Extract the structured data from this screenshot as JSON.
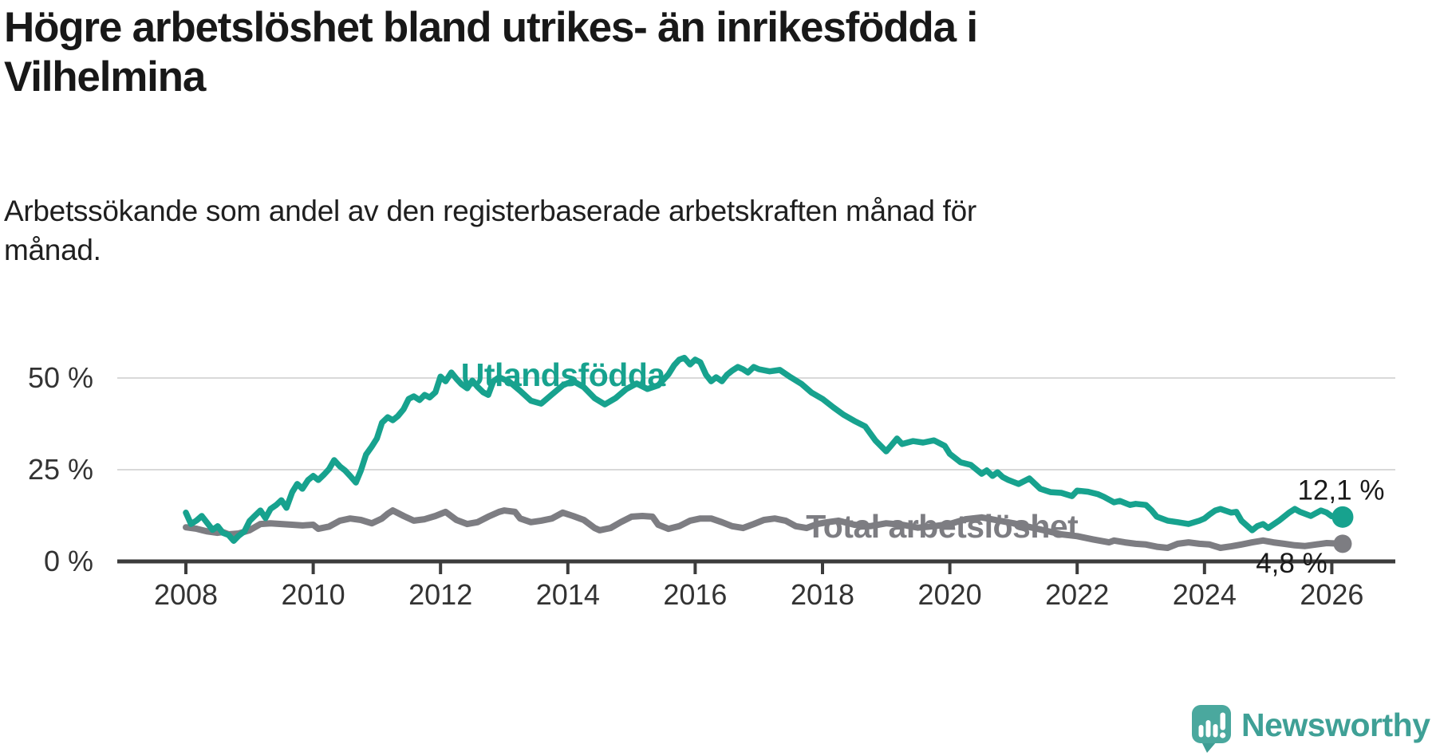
{
  "header": {
    "title": "Högre arbetslöshet bland utrikes- än inrikesfödda i\nVilhelmina",
    "subtitle": "Arbetssökande som andel av den registerbaserade arbetskraften månad för\nmånad."
  },
  "branding": {
    "logo_text": "Newsworthy",
    "logo_icon": "speech-bubble-bar-chart"
  },
  "palette": {
    "teal": "#17A28E",
    "gray": "#7D7D82",
    "grid": "#D9D9D9",
    "axis": "#3C3C3C",
    "tick_text": "#333333",
    "value_text": "#1A1A1A",
    "logo_teal": "#4AA89E",
    "logo_tail": "#3E9D94",
    "logo_text_color": "#3FA096"
  },
  "chart_data": {
    "type": "line",
    "title": "Högre arbetslöshet bland utrikes- än inrikesfödda i Vilhelmina",
    "subtitle": "Arbetssökande som andel av den registerbaserade arbetskraften månad för månad.",
    "xlabel": "",
    "ylabel": "",
    "x_range_years": [
      2006.9,
      2027.0
    ],
    "ylim": [
      0,
      57
    ],
    "grid": "horizontal-only",
    "y_ticks": [
      {
        "v": 0,
        "label": "0 %"
      },
      {
        "v": 25,
        "label": "25 %"
      },
      {
        "v": 50,
        "label": "50 %"
      }
    ],
    "grid_values": [
      25,
      50
    ],
    "x_ticks": [
      {
        "v": 2008,
        "label": "2008"
      },
      {
        "v": 2010,
        "label": "2010"
      },
      {
        "v": 2012,
        "label": "2012"
      },
      {
        "v": 2014,
        "label": "2014"
      },
      {
        "v": 2016,
        "label": "2016"
      },
      {
        "v": 2018,
        "label": "2018"
      },
      {
        "v": 2020,
        "label": "2020"
      },
      {
        "v": 2022,
        "label": "2022"
      },
      {
        "v": 2024,
        "label": "2024"
      },
      {
        "v": 2026,
        "label": "2026"
      }
    ],
    "legend_position": "inline-labels",
    "series": [
      {
        "name": "Total arbetslöshet",
        "color_key": "gray",
        "stroke_width": 8,
        "label_pos": [
          2017.74,
          9.6
        ],
        "end_label": "4,8 %",
        "end_value": 4.8,
        "points": [
          [
            2008.0,
            9.3
          ],
          [
            2008.17,
            8.9
          ],
          [
            2008.33,
            8.2
          ],
          [
            2008.5,
            7.8
          ],
          [
            2008.58,
            8.0
          ],
          [
            2008.67,
            7.4
          ],
          [
            2008.83,
            7.6
          ],
          [
            2009.0,
            8.5
          ],
          [
            2009.17,
            10.2
          ],
          [
            2009.33,
            10.4
          ],
          [
            2009.5,
            10.2
          ],
          [
            2009.67,
            10.0
          ],
          [
            2009.83,
            9.8
          ],
          [
            2010.0,
            10.0
          ],
          [
            2010.08,
            8.9
          ],
          [
            2010.25,
            9.5
          ],
          [
            2010.42,
            11.1
          ],
          [
            2010.58,
            11.7
          ],
          [
            2010.75,
            11.3
          ],
          [
            2010.92,
            10.4
          ],
          [
            2011.08,
            11.7
          ],
          [
            2011.17,
            13.0
          ],
          [
            2011.25,
            13.9
          ],
          [
            2011.42,
            12.4
          ],
          [
            2011.58,
            11.1
          ],
          [
            2011.75,
            11.5
          ],
          [
            2011.92,
            12.4
          ],
          [
            2012.08,
            13.5
          ],
          [
            2012.25,
            11.3
          ],
          [
            2012.42,
            10.2
          ],
          [
            2012.58,
            10.7
          ],
          [
            2012.75,
            12.2
          ],
          [
            2012.92,
            13.5
          ],
          [
            2013.0,
            13.9
          ],
          [
            2013.17,
            13.5
          ],
          [
            2013.25,
            11.7
          ],
          [
            2013.42,
            10.7
          ],
          [
            2013.58,
            11.1
          ],
          [
            2013.75,
            11.7
          ],
          [
            2013.92,
            13.3
          ],
          [
            2014.08,
            12.4
          ],
          [
            2014.25,
            11.3
          ],
          [
            2014.42,
            9.1
          ],
          [
            2014.5,
            8.5
          ],
          [
            2014.67,
            9.1
          ],
          [
            2014.83,
            10.7
          ],
          [
            2015.0,
            12.2
          ],
          [
            2015.17,
            12.4
          ],
          [
            2015.33,
            12.2
          ],
          [
            2015.42,
            10.0
          ],
          [
            2015.58,
            8.9
          ],
          [
            2015.75,
            9.6
          ],
          [
            2015.92,
            11.1
          ],
          [
            2016.08,
            11.7
          ],
          [
            2016.25,
            11.7
          ],
          [
            2016.42,
            10.7
          ],
          [
            2016.58,
            9.6
          ],
          [
            2016.75,
            9.1
          ],
          [
            2016.92,
            10.2
          ],
          [
            2017.08,
            11.3
          ],
          [
            2017.25,
            11.7
          ],
          [
            2017.42,
            11.1
          ],
          [
            2017.58,
            9.6
          ],
          [
            2017.75,
            9.1
          ],
          [
            2017.92,
            10.2
          ],
          [
            2018.08,
            10.7
          ],
          [
            2018.25,
            11.1
          ],
          [
            2018.5,
            10.0
          ],
          [
            2018.75,
            9.6
          ],
          [
            2019.0,
            10.4
          ],
          [
            2019.25,
            10.0
          ],
          [
            2019.5,
            9.2
          ],
          [
            2019.75,
            9.6
          ],
          [
            2020.0,
            10.2
          ],
          [
            2020.25,
            11.5
          ],
          [
            2020.5,
            12.0
          ],
          [
            2020.75,
            11.2
          ],
          [
            2021.0,
            10.4
          ],
          [
            2021.25,
            9.4
          ],
          [
            2021.5,
            8.4
          ],
          [
            2021.75,
            7.4
          ],
          [
            2022.0,
            6.9
          ],
          [
            2022.25,
            6.0
          ],
          [
            2022.5,
            5.2
          ],
          [
            2022.58,
            5.7
          ],
          [
            2022.75,
            5.2
          ],
          [
            2022.92,
            4.8
          ],
          [
            2023.08,
            4.6
          ],
          [
            2023.25,
            4.0
          ],
          [
            2023.42,
            3.7
          ],
          [
            2023.58,
            4.8
          ],
          [
            2023.75,
            5.2
          ],
          [
            2023.92,
            4.8
          ],
          [
            2024.08,
            4.6
          ],
          [
            2024.25,
            3.7
          ],
          [
            2024.42,
            4.1
          ],
          [
            2024.58,
            4.6
          ],
          [
            2024.75,
            5.2
          ],
          [
            2024.92,
            5.7
          ],
          [
            2025.08,
            5.2
          ],
          [
            2025.25,
            4.8
          ],
          [
            2025.42,
            4.4
          ],
          [
            2025.58,
            4.2
          ],
          [
            2025.75,
            4.6
          ],
          [
            2025.92,
            5.0
          ],
          [
            2026.17,
            4.8
          ]
        ]
      },
      {
        "name": "Utlandsfödda",
        "color_key": "teal",
        "stroke_width": 7.5,
        "label_pos": [
          2012.32,
          50.9
        ],
        "end_label": "12,1 %",
        "end_value": 12.1,
        "points": [
          [
            2008.0,
            13.3
          ],
          [
            2008.08,
            10.2
          ],
          [
            2008.17,
            11.2
          ],
          [
            2008.25,
            12.4
          ],
          [
            2008.33,
            10.6
          ],
          [
            2008.42,
            8.6
          ],
          [
            2008.5,
            9.6
          ],
          [
            2008.58,
            7.8
          ],
          [
            2008.67,
            7.2
          ],
          [
            2008.75,
            5.6
          ],
          [
            2008.83,
            7.0
          ],
          [
            2008.92,
            8.2
          ],
          [
            2009.0,
            11.0
          ],
          [
            2009.08,
            12.4
          ],
          [
            2009.17,
            13.9
          ],
          [
            2009.25,
            11.8
          ],
          [
            2009.33,
            14.3
          ],
          [
            2009.42,
            15.4
          ],
          [
            2009.5,
            16.7
          ],
          [
            2009.58,
            14.6
          ],
          [
            2009.67,
            18.9
          ],
          [
            2009.75,
            21.1
          ],
          [
            2009.83,
            19.8
          ],
          [
            2009.92,
            22.2
          ],
          [
            2010.0,
            23.3
          ],
          [
            2010.08,
            22.2
          ],
          [
            2010.17,
            23.7
          ],
          [
            2010.25,
            25.2
          ],
          [
            2010.33,
            27.6
          ],
          [
            2010.42,
            25.9
          ],
          [
            2010.5,
            24.8
          ],
          [
            2010.58,
            23.3
          ],
          [
            2010.67,
            21.5
          ],
          [
            2010.75,
            24.8
          ],
          [
            2010.83,
            29.1
          ],
          [
            2010.92,
            31.3
          ],
          [
            2011.0,
            33.5
          ],
          [
            2011.08,
            37.8
          ],
          [
            2011.17,
            39.3
          ],
          [
            2011.25,
            38.5
          ],
          [
            2011.33,
            39.6
          ],
          [
            2011.42,
            41.5
          ],
          [
            2011.5,
            44.3
          ],
          [
            2011.58,
            45.0
          ],
          [
            2011.67,
            44.0
          ],
          [
            2011.75,
            45.4
          ],
          [
            2011.83,
            44.7
          ],
          [
            2011.92,
            46.1
          ],
          [
            2012.0,
            50.4
          ],
          [
            2012.08,
            49.1
          ],
          [
            2012.17,
            51.5
          ],
          [
            2012.25,
            49.8
          ],
          [
            2012.33,
            48.3
          ],
          [
            2012.42,
            47.2
          ],
          [
            2012.5,
            49.3
          ],
          [
            2012.58,
            47.6
          ],
          [
            2012.67,
            46.1
          ],
          [
            2012.75,
            45.4
          ],
          [
            2012.83,
            49.1
          ],
          [
            2012.92,
            50.2
          ],
          [
            2013.08,
            49.0
          ],
          [
            2013.25,
            46.5
          ],
          [
            2013.42,
            43.8
          ],
          [
            2013.58,
            43.0
          ],
          [
            2013.75,
            45.5
          ],
          [
            2013.92,
            48.0
          ],
          [
            2014.08,
            49.2
          ],
          [
            2014.25,
            47.5
          ],
          [
            2014.42,
            44.5
          ],
          [
            2014.58,
            42.8
          ],
          [
            2014.75,
            44.5
          ],
          [
            2014.92,
            47.0
          ],
          [
            2015.08,
            48.5
          ],
          [
            2015.25,
            47.0
          ],
          [
            2015.42,
            48.0
          ],
          [
            2015.58,
            51.0
          ],
          [
            2015.67,
            53.5
          ],
          [
            2015.75,
            55.0
          ],
          [
            2015.83,
            55.5
          ],
          [
            2015.92,
            53.7
          ],
          [
            2016.0,
            55.0
          ],
          [
            2016.08,
            54.3
          ],
          [
            2016.17,
            50.9
          ],
          [
            2016.25,
            49.1
          ],
          [
            2016.33,
            50.2
          ],
          [
            2016.42,
            49.1
          ],
          [
            2016.5,
            50.9
          ],
          [
            2016.58,
            52.0
          ],
          [
            2016.67,
            53.0
          ],
          [
            2016.75,
            52.4
          ],
          [
            2016.83,
            51.5
          ],
          [
            2016.92,
            53.0
          ],
          [
            2017.0,
            52.4
          ],
          [
            2017.17,
            51.8
          ],
          [
            2017.33,
            52.2
          ],
          [
            2017.5,
            50.2
          ],
          [
            2017.67,
            48.4
          ],
          [
            2017.83,
            46.0
          ],
          [
            2018.0,
            44.3
          ],
          [
            2018.17,
            42.0
          ],
          [
            2018.33,
            40.0
          ],
          [
            2018.5,
            38.3
          ],
          [
            2018.67,
            36.8
          ],
          [
            2018.83,
            33.0
          ],
          [
            2019.0,
            30.0
          ],
          [
            2019.08,
            31.6
          ],
          [
            2019.17,
            33.5
          ],
          [
            2019.25,
            32.0
          ],
          [
            2019.42,
            32.8
          ],
          [
            2019.58,
            32.4
          ],
          [
            2019.75,
            33.0
          ],
          [
            2019.92,
            31.5
          ],
          [
            2020.0,
            29.3
          ],
          [
            2020.17,
            27.0
          ],
          [
            2020.33,
            26.3
          ],
          [
            2020.5,
            23.9
          ],
          [
            2020.58,
            24.8
          ],
          [
            2020.67,
            23.3
          ],
          [
            2020.75,
            24.3
          ],
          [
            2020.83,
            23.0
          ],
          [
            2020.92,
            22.2
          ],
          [
            2021.08,
            21.1
          ],
          [
            2021.25,
            22.6
          ],
          [
            2021.42,
            19.8
          ],
          [
            2021.58,
            18.9
          ],
          [
            2021.75,
            18.7
          ],
          [
            2021.92,
            17.8
          ],
          [
            2022.0,
            19.3
          ],
          [
            2022.17,
            19.0
          ],
          [
            2022.33,
            18.3
          ],
          [
            2022.42,
            17.6
          ],
          [
            2022.58,
            16.1
          ],
          [
            2022.67,
            16.5
          ],
          [
            2022.83,
            15.4
          ],
          [
            2022.92,
            15.7
          ],
          [
            2023.08,
            15.4
          ],
          [
            2023.17,
            13.9
          ],
          [
            2023.25,
            12.2
          ],
          [
            2023.42,
            11.1
          ],
          [
            2023.58,
            10.7
          ],
          [
            2023.75,
            10.2
          ],
          [
            2023.92,
            11.1
          ],
          [
            2024.0,
            11.7
          ],
          [
            2024.08,
            12.8
          ],
          [
            2024.17,
            13.9
          ],
          [
            2024.25,
            14.3
          ],
          [
            2024.42,
            13.3
          ],
          [
            2024.5,
            13.5
          ],
          [
            2024.58,
            11.1
          ],
          [
            2024.75,
            8.5
          ],
          [
            2024.83,
            9.6
          ],
          [
            2024.92,
            10.2
          ],
          [
            2025.0,
            9.1
          ],
          [
            2025.17,
            11.1
          ],
          [
            2025.33,
            13.3
          ],
          [
            2025.42,
            14.3
          ],
          [
            2025.5,
            13.5
          ],
          [
            2025.67,
            12.4
          ],
          [
            2025.83,
            13.9
          ],
          [
            2025.92,
            13.3
          ],
          [
            2026.0,
            12.3
          ],
          [
            2026.17,
            12.1
          ]
        ]
      }
    ]
  }
}
